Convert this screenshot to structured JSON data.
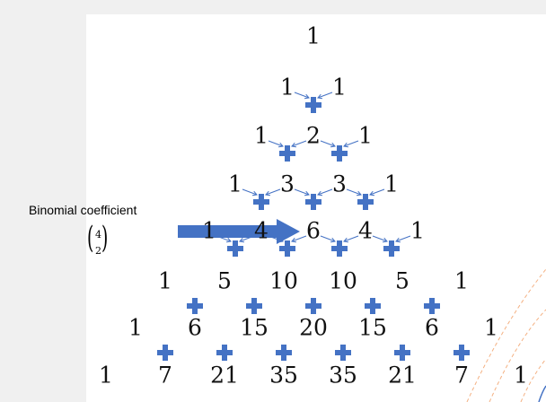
{
  "label": "Binomial coefficient",
  "binomial": {
    "n": "4",
    "k": "2"
  },
  "rows": [
    [
      "1"
    ],
    [
      "1",
      "1"
    ],
    [
      "1",
      "2",
      "1"
    ],
    [
      "1",
      "3",
      "3",
      "1"
    ],
    [
      "1",
      "4",
      "6",
      "4",
      "1"
    ],
    [
      "1",
      "5",
      "10",
      "10",
      "5",
      "1"
    ],
    [
      "1",
      "6",
      "15",
      "20",
      "15",
      "6",
      "1"
    ],
    [
      "1",
      "7",
      "21",
      "35",
      "35",
      "21",
      "7",
      "1"
    ]
  ],
  "colors": {
    "plus": "#4472c4",
    "arrow": "#4472c4",
    "decor": "#f4b183"
  }
}
